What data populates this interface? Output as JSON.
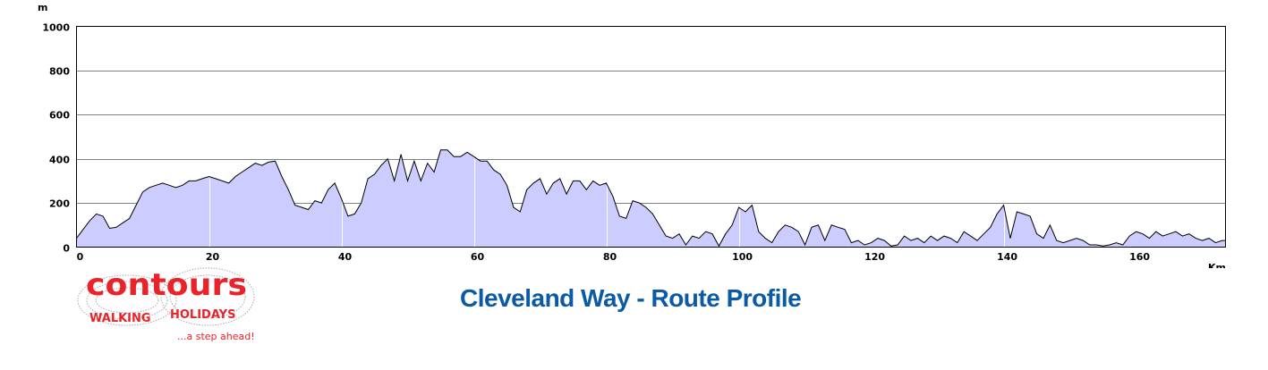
{
  "title": "Cleveland Way - Route Profile",
  "logo": {
    "brand": "contours",
    "tagline1": "WALKING HOLIDAYS",
    "tagline2": "...a step ahead!",
    "color": "#e8232a"
  },
  "chart_data": {
    "type": "area",
    "title": "Cleveland Way - Route Profile",
    "xlabel": "Km",
    "ylabel": "m",
    "xlim": [
      0,
      173.5
    ],
    "ylim": [
      0,
      1000
    ],
    "xticks": [
      0,
      20,
      40,
      60,
      80,
      100,
      120,
      140,
      160
    ],
    "yticks": [
      0,
      200,
      400,
      600,
      800,
      1000
    ],
    "grid": "horizontal",
    "markers_km": [
      20,
      40,
      60,
      80,
      100,
      140
    ],
    "fill_color": "#ccccff",
    "line_color": "#000000",
    "x": [
      0,
      1,
      2,
      3,
      4,
      5,
      6,
      7,
      8,
      9,
      10,
      11,
      12,
      13,
      14,
      15,
      16,
      17,
      18,
      19,
      20,
      21,
      22,
      23,
      24,
      25,
      26,
      27,
      28,
      29,
      30,
      31,
      32,
      33,
      34,
      35,
      36,
      37,
      38,
      39,
      40,
      41,
      42,
      43,
      44,
      45,
      46,
      47,
      48,
      49,
      50,
      51,
      52,
      53,
      54,
      55,
      56,
      57,
      58,
      59,
      60,
      61,
      62,
      63,
      64,
      65,
      66,
      67,
      68,
      69,
      70,
      71,
      72,
      73,
      74,
      75,
      76,
      77,
      78,
      79,
      80,
      81,
      82,
      83,
      84,
      85,
      86,
      87,
      88,
      89,
      90,
      91,
      92,
      93,
      94,
      95,
      96,
      97,
      98,
      99,
      100,
      101,
      102,
      103,
      104,
      105,
      106,
      107,
      108,
      109,
      110,
      111,
      112,
      113,
      114,
      115,
      116,
      117,
      118,
      119,
      120,
      121,
      122,
      123,
      124,
      125,
      126,
      127,
      128,
      129,
      130,
      131,
      132,
      133,
      134,
      135,
      136,
      137,
      138,
      139,
      140,
      141,
      142,
      143,
      144,
      145,
      146,
      147,
      148,
      149,
      150,
      151,
      152,
      153,
      154,
      155,
      156,
      157,
      158,
      159,
      160,
      161,
      162,
      163,
      164,
      165,
      166,
      167,
      168,
      169,
      170,
      171,
      172,
      173
    ],
    "y": [
      40,
      80,
      120,
      150,
      140,
      85,
      90,
      110,
      130,
      190,
      250,
      270,
      280,
      290,
      280,
      270,
      280,
      300,
      300,
      310,
      320,
      310,
      300,
      290,
      320,
      340,
      360,
      380,
      370,
      385,
      390,
      320,
      260,
      190,
      180,
      170,
      210,
      200,
      260,
      290,
      220,
      140,
      150,
      200,
      310,
      330,
      370,
      400,
      300,
      420,
      300,
      390,
      300,
      380,
      340,
      440,
      440,
      410,
      410,
      430,
      410,
      390,
      390,
      350,
      330,
      280,
      180,
      160,
      260,
      290,
      310,
      240,
      290,
      310,
      240,
      300,
      300,
      260,
      300,
      280,
      290,
      230,
      140,
      130,
      210,
      200,
      180,
      150,
      100,
      50,
      40,
      60,
      10,
      50,
      40,
      70,
      60,
      5,
      60,
      100,
      180,
      160,
      190,
      70,
      40,
      20,
      70,
      100,
      90,
      70,
      10,
      90,
      100,
      30,
      100,
      90,
      80,
      20,
      30,
      10,
      20,
      40,
      30,
      5,
      10,
      50,
      30,
      40,
      20,
      50,
      30,
      50,
      40,
      20,
      70,
      50,
      30,
      60,
      90,
      150,
      190,
      40,
      160,
      150,
      140,
      60,
      40,
      100,
      30,
      20,
      30,
      40,
      30,
      10,
      10,
      5,
      10,
      20,
      10,
      50,
      70,
      60,
      40,
      70,
      50,
      60,
      70,
      50,
      60,
      40,
      30,
      40,
      20,
      30
    ]
  }
}
